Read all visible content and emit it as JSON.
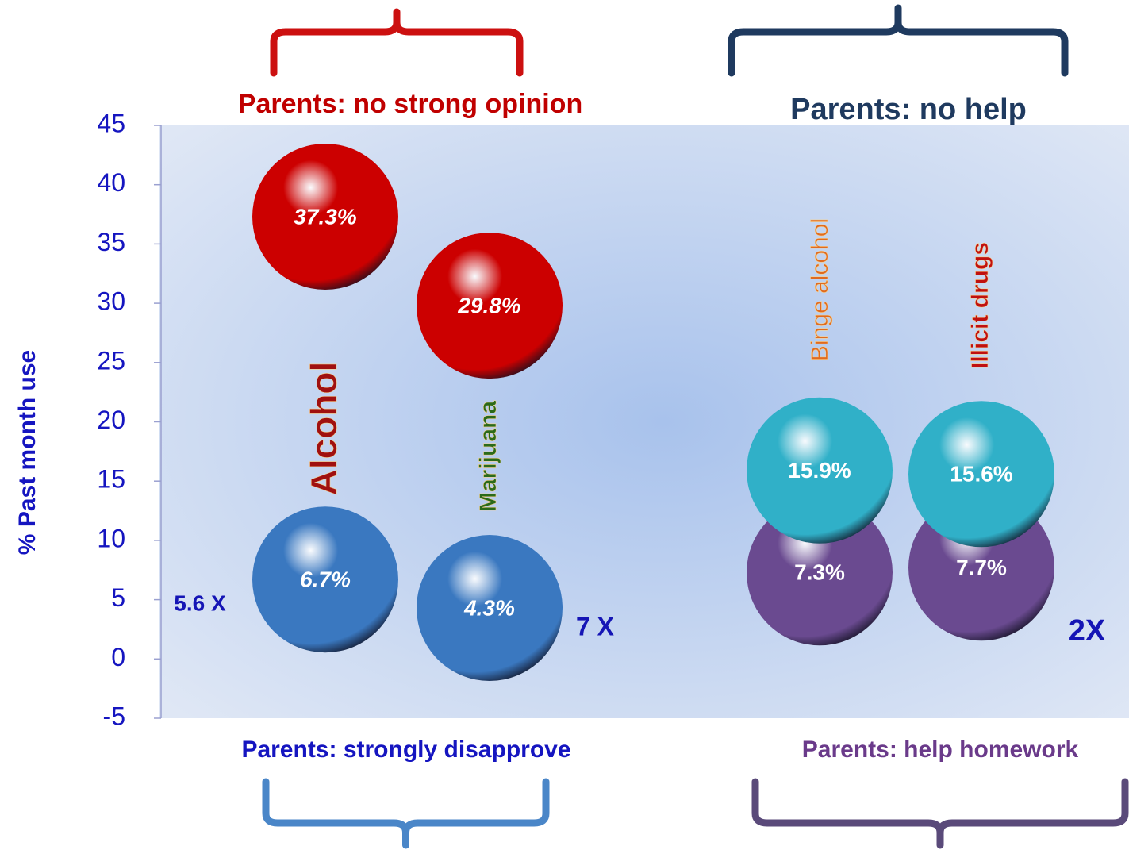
{
  "chart_data": {
    "type": "bubble",
    "y_label": "% Past month use",
    "ylim": [
      -5,
      45
    ],
    "yticks": [
      -5,
      0,
      5,
      10,
      15,
      20,
      25,
      30,
      35,
      40,
      45
    ],
    "categories": [
      "Alcohol",
      "Marijuana",
      "Binge alcohol",
      "Illicit drugs"
    ],
    "category_colors": [
      "#a01010",
      "#2a6a1a",
      "#e06a20",
      "#c01010"
    ],
    "series": [
      {
        "name": "Parents: no strong opinion",
        "color": "#cc0000",
        "values": [
          37.3,
          29.8,
          null,
          null
        ],
        "value_labels": [
          "37.3%",
          "29.8%",
          null,
          null
        ]
      },
      {
        "name": "Parents:  strongly disapprove",
        "color": "#3a78c0",
        "values": [
          6.7,
          4.3,
          null,
          null
        ],
        "value_labels": [
          "6.7%",
          "4.3%",
          null,
          null
        ]
      },
      {
        "name": "Parents:  no help",
        "color": "#30b0c8",
        "values": [
          null,
          null,
          15.9,
          15.6
        ],
        "value_labels": [
          null,
          null,
          "15.9%",
          "15.6%"
        ]
      },
      {
        "name": "Parents:  help  homework",
        "color": "#6a4a90",
        "values": [
          null,
          null,
          7.3,
          7.7
        ],
        "value_labels": [
          null,
          null,
          "7.3%",
          "7.7%"
        ]
      }
    ],
    "annotations": [
      "5.6 X",
      "7 X",
      "2X"
    ]
  }
}
